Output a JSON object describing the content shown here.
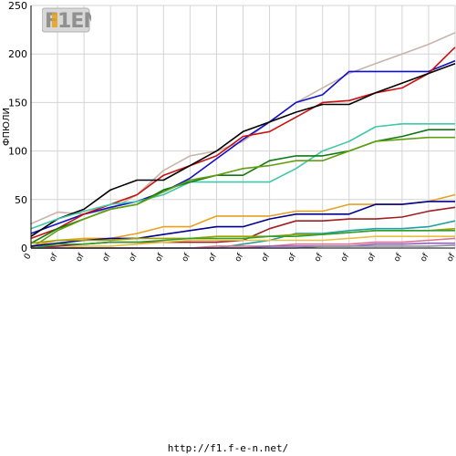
{
  "logo": {
    "text": "F1EN"
  },
  "footer": {
    "url": "http://f1.f-e-n.net/"
  },
  "chart_data": {
    "type": "line",
    "ylabel": "ФПЮЛИ",
    "xlabel": "",
    "ylim": [
      0,
      250
    ],
    "yticks": [
      0,
      50,
      100,
      150,
      200,
      250
    ],
    "grid": true,
    "x_tick_labels": [
      "0",
      "of",
      "of",
      "of",
      "of",
      "of",
      "of",
      "of",
      "of",
      "of",
      "of",
      "of",
      "of",
      "of",
      "of",
      "of",
      "of"
    ],
    "x": [
      0,
      1,
      2,
      3,
      4,
      5,
      6,
      7,
      8,
      9,
      10,
      11,
      12,
      13,
      14,
      15,
      16
    ],
    "series": [
      {
        "color": "#c8b4a8",
        "values": [
          25,
          37,
          35,
          40,
          55,
          80,
          95,
          100,
          110,
          130,
          150,
          165,
          180,
          190,
          200,
          210,
          222
        ]
      },
      {
        "color": "#1010c8",
        "values": [
          15,
          25,
          35,
          42,
          48,
          58,
          72,
          92,
          112,
          130,
          150,
          158,
          182,
          182,
          182,
          182,
          193
        ]
      },
      {
        "color": "#cc1010",
        "values": [
          10,
          20,
          35,
          45,
          55,
          75,
          85,
          95,
          115,
          120,
          135,
          150,
          152,
          160,
          165,
          180,
          207
        ]
      },
      {
        "color": "#000000",
        "values": [
          12,
          30,
          40,
          60,
          70,
          70,
          85,
          100,
          120,
          130,
          140,
          148,
          148,
          160,
          170,
          180,
          190
        ]
      },
      {
        "color": "#40c8a8",
        "values": [
          20,
          30,
          38,
          45,
          48,
          55,
          68,
          68,
          68,
          68,
          82,
          100,
          110,
          125,
          128,
          128,
          128
        ]
      },
      {
        "color": "#107810",
        "values": [
          5,
          20,
          30,
          40,
          45,
          60,
          68,
          75,
          75,
          90,
          95,
          95,
          100,
          110,
          115,
          122,
          122
        ]
      },
      {
        "color": "#60a010",
        "values": [
          0,
          18,
          30,
          40,
          45,
          58,
          70,
          75,
          82,
          85,
          90,
          90,
          100,
          110,
          112,
          114,
          114
        ]
      },
      {
        "color": "#e8a020",
        "values": [
          2,
          8,
          10,
          10,
          15,
          22,
          22,
          33,
          33,
          33,
          38,
          38,
          45,
          45,
          45,
          48,
          55
        ]
      },
      {
        "color": "#000090",
        "values": [
          2,
          5,
          8,
          10,
          10,
          14,
          18,
          22,
          22,
          30,
          35,
          35,
          35,
          45,
          45,
          48,
          48
        ]
      },
      {
        "color": "#a02020",
        "values": [
          0,
          2,
          4,
          6,
          6,
          6,
          6,
          6,
          8,
          20,
          28,
          28,
          30,
          30,
          32,
          38,
          42
        ]
      },
      {
        "color": "#20a0a0",
        "values": [
          0,
          0,
          0,
          0,
          0,
          0,
          0,
          0,
          4,
          8,
          15,
          15,
          18,
          20,
          20,
          22,
          28
        ]
      },
      {
        "color": "#a0a000",
        "values": [
          5,
          8,
          8,
          8,
          10,
          10,
          10,
          12,
          12,
          12,
          14,
          14,
          16,
          18,
          18,
          18,
          20
        ]
      },
      {
        "color": "#30a030",
        "values": [
          0,
          4,
          4,
          6,
          6,
          8,
          10,
          10,
          10,
          12,
          12,
          14,
          16,
          18,
          18,
          18,
          18
        ]
      },
      {
        "color": "#e8c040",
        "values": [
          0,
          0,
          2,
          2,
          4,
          6,
          8,
          8,
          8,
          8,
          8,
          8,
          10,
          12,
          12,
          12,
          12
        ]
      },
      {
        "color": "#e07090",
        "values": [
          0,
          0,
          0,
          0,
          0,
          0,
          0,
          2,
          2,
          2,
          4,
          4,
          4,
          6,
          6,
          8,
          10
        ]
      },
      {
        "color": "#9060c0",
        "values": [
          0,
          0,
          0,
          0,
          0,
          0,
          0,
          0,
          0,
          2,
          2,
          2,
          2,
          4,
          4,
          5,
          5
        ]
      },
      {
        "color": "#9090a0",
        "values": [
          0,
          0,
          0,
          0,
          0,
          0,
          0,
          0,
          0,
          0,
          0,
          2,
          2,
          2,
          2,
          2,
          3
        ]
      }
    ]
  }
}
